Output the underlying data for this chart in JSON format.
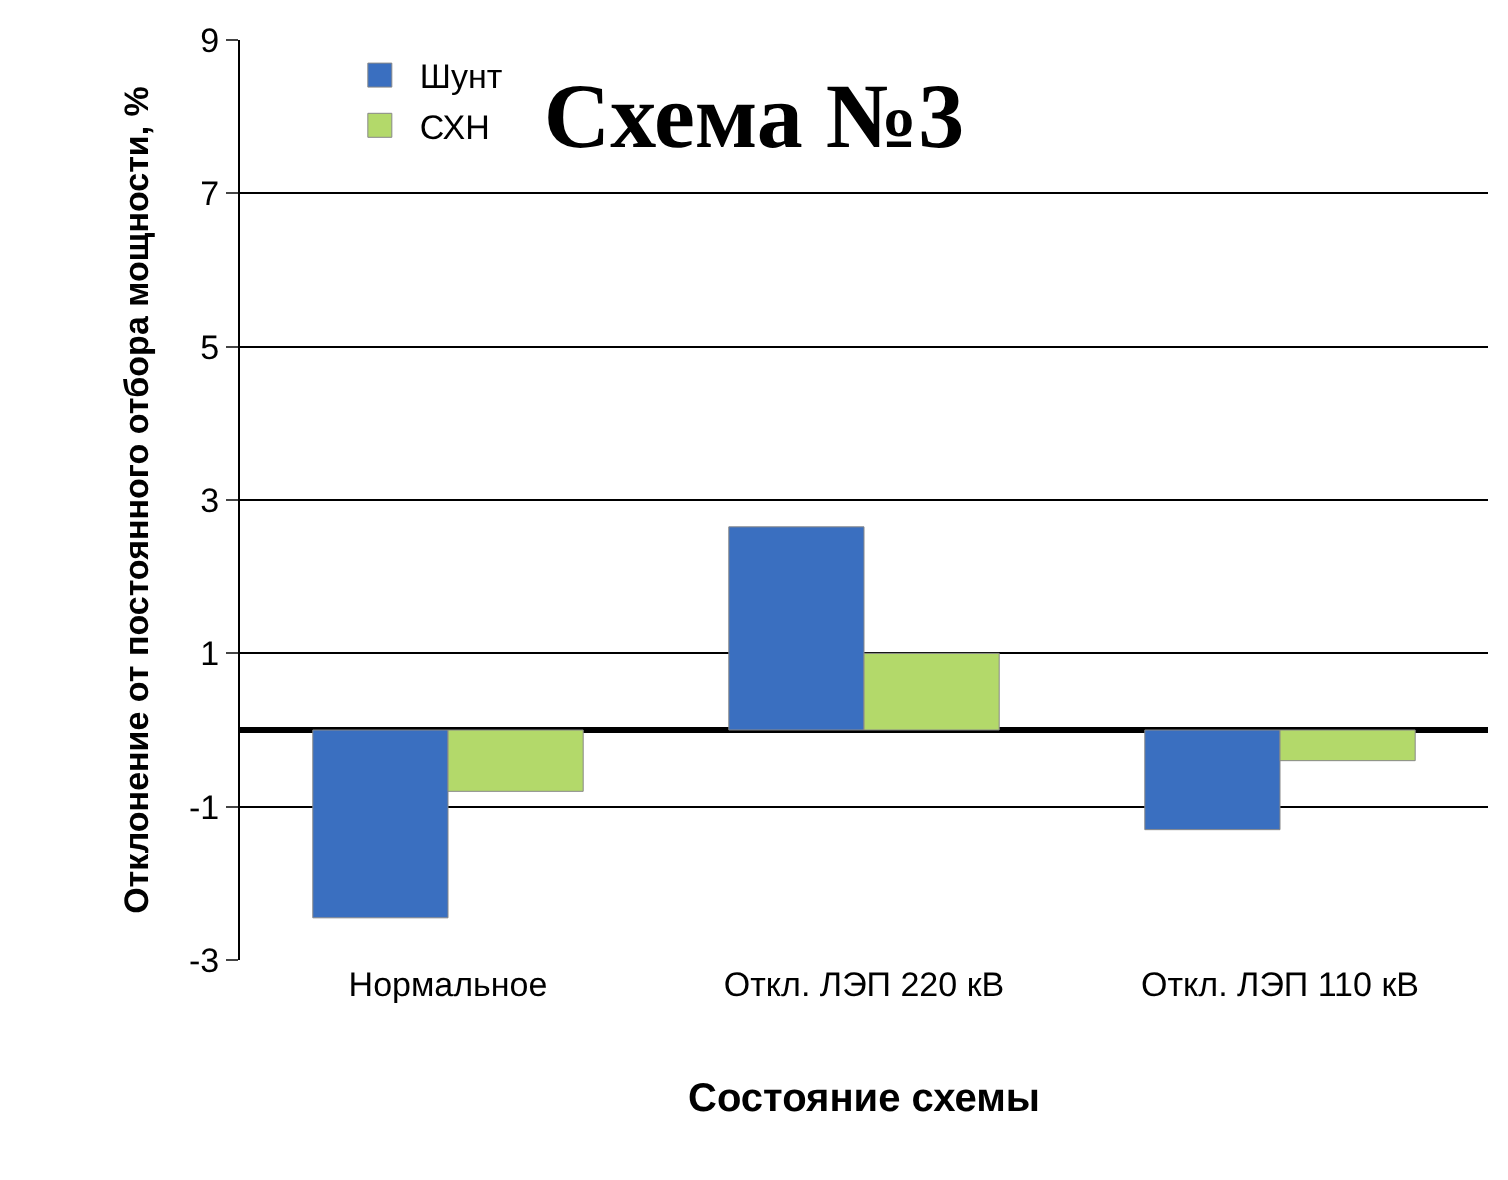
{
  "chart_data": {
    "type": "bar",
    "title": "Схема №3",
    "xlabel": "Состояние схемы",
    "ylabel": "Отклонение от постоянного отбора мощности, %",
    "categories": [
      "Нормальное",
      "Откл. ЛЭП 220 кВ",
      "Откл. ЛЭП 110 кВ"
    ],
    "series": [
      {
        "name": "Шунт",
        "color": "#3a6fc0",
        "values": [
          -2.45,
          2.65,
          -1.3
        ]
      },
      {
        "name": "СХН",
        "color": "#b3d96a",
        "values": [
          -0.8,
          1.0,
          -0.4
        ]
      }
    ],
    "ylim": [
      -3,
      9
    ],
    "yticks": [
      -3,
      -1,
      1,
      3,
      5,
      7,
      9
    ],
    "grid": "y",
    "legend": "top left"
  }
}
